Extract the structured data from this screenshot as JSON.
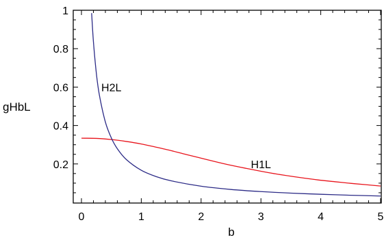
{
  "chart_data": {
    "type": "line",
    "title": "",
    "xlabel": "b",
    "ylabel": "gHbL",
    "xlim": [
      0,
      5
    ],
    "ylim": [
      0,
      1
    ],
    "x_ticks": [
      0,
      1,
      2,
      3,
      4,
      5
    ],
    "x_tick_labels": [
      "0",
      "1",
      "2",
      "3",
      "4",
      "5"
    ],
    "y_ticks": [
      0.2,
      0.4,
      0.6,
      0.8,
      1
    ],
    "y_tick_labels": [
      "0.2",
      "0.4",
      "0.6",
      "0.8",
      "1"
    ],
    "grid": false,
    "frame": "box",
    "series": [
      {
        "name": "H1L",
        "color": "#e8131b",
        "x": [
          0,
          0.25,
          0.5,
          0.75,
          1,
          1.25,
          1.5,
          1.75,
          2,
          2.25,
          2.5,
          2.75,
          3,
          3.25,
          3.5,
          3.75,
          4,
          4.25,
          4.5,
          4.75,
          5
        ],
        "y": [
          0.334,
          0.333,
          0.327,
          0.317,
          0.304,
          0.287,
          0.269,
          0.249,
          0.23,
          0.211,
          0.193,
          0.177,
          0.162,
          0.148,
          0.136,
          0.125,
          0.115,
          0.107,
          0.099,
          0.092,
          0.085
        ]
      },
      {
        "name": "H2L",
        "color": "#2b2a86",
        "x": [
          0.17,
          0.2,
          0.25,
          0.3,
          0.4,
          0.5,
          0.6,
          0.75,
          1,
          1.25,
          1.5,
          2,
          2.5,
          3,
          3.5,
          4,
          4.5,
          5
        ],
        "y": [
          0.985,
          0.837,
          0.669,
          0.558,
          0.418,
          0.335,
          0.279,
          0.223,
          0.167,
          0.134,
          0.112,
          0.084,
          0.067,
          0.056,
          0.048,
          0.042,
          0.037,
          0.033
        ]
      }
    ],
    "curve_labels": [
      {
        "text": "H2L",
        "series": "H2L",
        "x": 0.5,
        "y": 0.6
      },
      {
        "text": "H1L",
        "series": "H1L",
        "x": 3.0,
        "y": 0.2
      }
    ]
  }
}
